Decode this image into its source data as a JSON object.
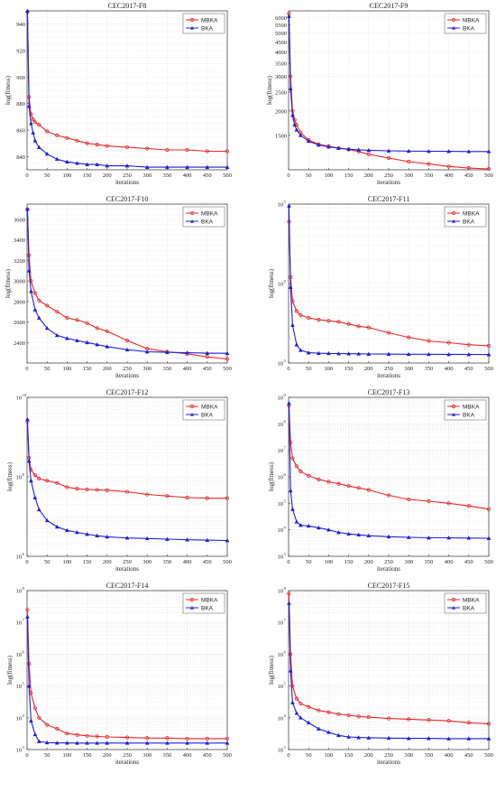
{
  "figure": {
    "colors": {
      "MBKA": "#e8272a",
      "BKA": "#1f1fd6",
      "grid": "#d9d9d9",
      "axis": "#333333"
    }
  },
  "chart_data": [
    {
      "type": "line",
      "title": "CEC2017-F8",
      "xlabel": "iterations",
      "ylabel": "log(fitness)",
      "yscale": "linear",
      "xlim": [
        0,
        500
      ],
      "ylim": [
        830,
        950
      ],
      "xticks": [
        0,
        50,
        100,
        150,
        200,
        250,
        300,
        350,
        400,
        450,
        500
      ],
      "yticks": [
        840,
        860,
        880,
        900,
        920,
        940
      ],
      "legend": "top-right",
      "grid": true,
      "series": [
        {
          "name": "MBKA",
          "color": "#e8272a",
          "marker": "circle",
          "x": [
            1,
            5,
            10,
            15,
            20,
            30,
            50,
            75,
            100,
            125,
            150,
            175,
            200,
            250,
            300,
            350,
            400,
            450,
            500
          ],
          "y": [
            949,
            885,
            872,
            868,
            866,
            864,
            859,
            856,
            854,
            852,
            850,
            849,
            848,
            847,
            846,
            845,
            845,
            844,
            844
          ]
        },
        {
          "name": "BKA",
          "color": "#1f1fd6",
          "marker": "triangle",
          "x": [
            1,
            5,
            10,
            15,
            20,
            30,
            50,
            75,
            100,
            125,
            150,
            175,
            200,
            250,
            300,
            350,
            400,
            450,
            500
          ],
          "y": [
            950,
            878,
            865,
            858,
            852,
            847,
            842,
            838,
            836,
            835,
            834,
            834,
            833,
            833,
            832,
            832,
            832,
            832,
            832
          ]
        }
      ]
    },
    {
      "type": "line",
      "title": "CEC2017-F9",
      "xlabel": "iterations",
      "ylabel": "log(fitness)",
      "yscale": "log",
      "xlim": [
        0,
        500
      ],
      "ylim": [
        1000,
        6500
      ],
      "xticks": [
        0,
        50,
        100,
        150,
        200,
        250,
        300,
        350,
        400,
        450,
        500
      ],
      "yticks": [
        1500,
        2000,
        2500,
        3000,
        3500,
        4000,
        4500,
        5000,
        5500,
        6000
      ],
      "legend": "top-right",
      "grid": true,
      "series": [
        {
          "name": "MBKA",
          "color": "#e8272a",
          "marker": "circle",
          "x": [
            1,
            5,
            10,
            15,
            20,
            30,
            50,
            75,
            100,
            125,
            150,
            175,
            200,
            250,
            300,
            350,
            400,
            450,
            500
          ],
          "y": [
            6300,
            3000,
            2000,
            1800,
            1700,
            1550,
            1420,
            1350,
            1320,
            1290,
            1270,
            1240,
            1200,
            1150,
            1100,
            1070,
            1040,
            1020,
            1010
          ]
        },
        {
          "name": "BKA",
          "color": "#1f1fd6",
          "marker": "triangle",
          "x": [
            1,
            5,
            10,
            15,
            20,
            30,
            50,
            75,
            100,
            125,
            150,
            175,
            200,
            250,
            300,
            350,
            400,
            450,
            500
          ],
          "y": [
            6100,
            2600,
            1900,
            1700,
            1600,
            1500,
            1400,
            1340,
            1310,
            1290,
            1275,
            1265,
            1258,
            1250,
            1246,
            1244,
            1242,
            1240,
            1240
          ]
        }
      ]
    },
    {
      "type": "line",
      "title": "CEC2017-F10",
      "xlabel": "iterations",
      "ylabel": "log(fitness)",
      "yscale": "linear",
      "xlim": [
        0,
        500
      ],
      "ylim": [
        2200,
        3750
      ],
      "xticks": [
        0,
        50,
        100,
        150,
        200,
        250,
        300,
        350,
        400,
        450,
        500
      ],
      "yticks": [
        2400,
        2600,
        2800,
        3000,
        3200,
        3400,
        3600
      ],
      "legend": "top-right",
      "grid": true,
      "series": [
        {
          "name": "MBKA",
          "color": "#e8272a",
          "marker": "circle",
          "x": [
            1,
            5,
            10,
            20,
            30,
            50,
            75,
            100,
            125,
            150,
            175,
            200,
            250,
            300,
            350,
            400,
            450,
            500
          ],
          "y": [
            3700,
            3250,
            3000,
            2880,
            2810,
            2760,
            2700,
            2640,
            2620,
            2590,
            2540,
            2510,
            2420,
            2340,
            2310,
            2290,
            2260,
            2240
          ]
        },
        {
          "name": "BKA",
          "color": "#1f1fd6",
          "marker": "triangle",
          "x": [
            1,
            5,
            10,
            20,
            30,
            50,
            75,
            100,
            125,
            150,
            175,
            200,
            250,
            300,
            350,
            400,
            450,
            500
          ],
          "y": [
            3700,
            3100,
            2900,
            2720,
            2640,
            2540,
            2470,
            2440,
            2420,
            2400,
            2380,
            2360,
            2330,
            2310,
            2305,
            2300,
            2296,
            2295
          ]
        }
      ]
    },
    {
      "type": "line",
      "title": "CEC2017-F11",
      "xlabel": "iterations",
      "ylabel": "log(fitness)",
      "yscale": "log",
      "xlim": [
        0,
        500
      ],
      "ylim": [
        1000,
        100000
      ],
      "xticks": [
        0,
        50,
        100,
        150,
        200,
        250,
        300,
        350,
        400,
        450,
        500
      ],
      "yticks": [
        1000,
        10000,
        100000
      ],
      "ytick_labels": [
        "10",
        "10",
        "10"
      ],
      "ytick_exps": [
        "3",
        "4",
        "5"
      ],
      "legend": "top-right",
      "grid": true,
      "series": [
        {
          "name": "MBKA",
          "color": "#e8272a",
          "marker": "circle",
          "x": [
            1,
            5,
            10,
            20,
            30,
            50,
            75,
            100,
            125,
            150,
            175,
            200,
            250,
            300,
            350,
            400,
            450,
            500
          ],
          "y": [
            60000,
            12000,
            6000,
            4500,
            4000,
            3700,
            3500,
            3400,
            3300,
            3100,
            2900,
            2800,
            2400,
            2100,
            1900,
            1800,
            1700,
            1650
          ]
        },
        {
          "name": "BKA",
          "color": "#1f1fd6",
          "marker": "triangle",
          "x": [
            1,
            5,
            10,
            20,
            30,
            50,
            75,
            100,
            125,
            150,
            175,
            200,
            250,
            300,
            350,
            400,
            450,
            500
          ],
          "y": [
            95000,
            9000,
            3000,
            1700,
            1450,
            1350,
            1330,
            1320,
            1315,
            1310,
            1305,
            1300,
            1295,
            1290,
            1288,
            1285,
            1283,
            1280
          ]
        }
      ]
    },
    {
      "type": "line",
      "title": "CEC2017-F12",
      "xlabel": "iterations",
      "ylabel": "log(fitness)",
      "yscale": "log",
      "xlim": [
        0,
        500
      ],
      "ylim": [
        1000000,
        10000000000
      ],
      "xticks": [
        0,
        50,
        100,
        150,
        200,
        250,
        300,
        350,
        400,
        450,
        500
      ],
      "yticks": [
        1000000,
        100000000,
        10000000000
      ],
      "ytick_labels": [
        "10",
        "10",
        "10"
      ],
      "ytick_exps": [
        "6",
        "8",
        "10"
      ],
      "legend": "top-right",
      "grid": true,
      "series": [
        {
          "name": "MBKA",
          "color": "#e8272a",
          "marker": "circle",
          "x": [
            1,
            5,
            10,
            20,
            30,
            50,
            75,
            100,
            125,
            150,
            175,
            200,
            250,
            300,
            350,
            400,
            450,
            500
          ],
          "y": [
            2500000000,
            300000000,
            150000000,
            110000000,
            90000000,
            80000000,
            70000000,
            55000000,
            50000000,
            48000000,
            47000000,
            46000000,
            42000000,
            36000000,
            33000000,
            30000000,
            29000000,
            29000000
          ]
        },
        {
          "name": "BKA",
          "color": "#1f1fd6",
          "marker": "triangle",
          "x": [
            1,
            5,
            10,
            20,
            30,
            50,
            75,
            100,
            125,
            150,
            175,
            200,
            250,
            300,
            350,
            400,
            450,
            500
          ],
          "y": [
            2800000000,
            250000000,
            80000000,
            30000000,
            15000000,
            8000000,
            5500000,
            4500000,
            4000000,
            3600000,
            3300000,
            3100000,
            2900000,
            2800000,
            2700000,
            2600000,
            2550000,
            2500000
          ]
        }
      ]
    },
    {
      "type": "line",
      "title": "CEC2017-F13",
      "xlabel": "iterations",
      "ylabel": "log(fitness)",
      "yscale": "log",
      "xlim": [
        0,
        500
      ],
      "ylim": [
        1000,
        1000000000
      ],
      "xticks": [
        0,
        50,
        100,
        150,
        200,
        250,
        300,
        350,
        400,
        450,
        500
      ],
      "yticks": [
        1000,
        10000,
        100000,
        1000000,
        10000000,
        100000000,
        1000000000
      ],
      "ytick_labels": [
        "10",
        "10",
        "10",
        "10",
        "10",
        "10",
        "10"
      ],
      "ytick_exps": [
        "3",
        "4",
        "5",
        "6",
        "7",
        "8",
        "9"
      ],
      "legend": "top-right",
      "grid": true,
      "series": [
        {
          "name": "MBKA",
          "color": "#e8272a",
          "marker": "circle",
          "x": [
            1,
            5,
            10,
            20,
            30,
            50,
            75,
            100,
            125,
            150,
            175,
            200,
            250,
            300,
            350,
            400,
            450,
            500
          ],
          "y": [
            500000000,
            20000000,
            5000000,
            2500000,
            1600000,
            1100000,
            800000,
            650000,
            550000,
            450000,
            380000,
            320000,
            200000,
            140000,
            120000,
            100000,
            80000,
            60000
          ]
        },
        {
          "name": "BKA",
          "color": "#1f1fd6",
          "marker": "triangle",
          "x": [
            1,
            5,
            10,
            20,
            30,
            50,
            75,
            100,
            125,
            150,
            175,
            200,
            250,
            300,
            350,
            400,
            450,
            500
          ],
          "y": [
            600000000,
            300000,
            60000,
            20000,
            15000,
            14000,
            12000,
            10000,
            8000,
            7000,
            6500,
            6000,
            5500,
            5200,
            5000,
            5000,
            4900,
            4800
          ]
        }
      ]
    },
    {
      "type": "line",
      "title": "CEC2017-F14",
      "xlabel": "iterations",
      "ylabel": "log(fitness)",
      "yscale": "log",
      "xlim": [
        0,
        500
      ],
      "ylim": [
        1000,
        100000000
      ],
      "xticks": [
        0,
        50,
        100,
        150,
        200,
        250,
        300,
        350,
        400,
        450,
        500
      ],
      "yticks": [
        1000,
        10000,
        100000,
        1000000,
        10000000,
        100000000
      ],
      "ytick_labels": [
        "10",
        "10",
        "10",
        "10",
        "10",
        "10"
      ],
      "ytick_exps": [
        "3",
        "4",
        "5",
        "6",
        "7",
        "8"
      ],
      "legend": "top-right",
      "grid": true,
      "series": [
        {
          "name": "MBKA",
          "color": "#e8272a",
          "marker": "circle",
          "x": [
            1,
            5,
            10,
            20,
            30,
            50,
            75,
            100,
            125,
            150,
            175,
            200,
            250,
            300,
            350,
            400,
            450,
            500
          ],
          "y": [
            25000000,
            500000,
            60000,
            20000,
            10000,
            6000,
            4500,
            3200,
            2900,
            2700,
            2600,
            2500,
            2400,
            2300,
            2300,
            2200,
            2200,
            2200
          ]
        },
        {
          "name": "BKA",
          "color": "#1f1fd6",
          "marker": "triangle",
          "x": [
            1,
            5,
            10,
            20,
            30,
            50,
            75,
            100,
            125,
            150,
            175,
            200,
            250,
            300,
            350,
            400,
            450,
            500
          ],
          "y": [
            15000000,
            100000,
            8000,
            3000,
            1800,
            1650,
            1620,
            1610,
            1600,
            1600,
            1600,
            1600,
            1600,
            1600,
            1600,
            1600,
            1600,
            1600
          ]
        }
      ]
    },
    {
      "type": "line",
      "title": "CEC2017-F15",
      "xlabel": "iterations",
      "ylabel": "log(fitness)",
      "yscale": "log",
      "xlim": [
        0,
        500
      ],
      "ylim": [
        1000,
        100000000
      ],
      "xticks": [
        0,
        50,
        100,
        150,
        200,
        250,
        300,
        350,
        400,
        450,
        500
      ],
      "yticks": [
        1000,
        10000,
        100000,
        1000000,
        10000000,
        100000000
      ],
      "ytick_labels": [
        "10",
        "10",
        "10",
        "10",
        "10",
        "10"
      ],
      "ytick_exps": [
        "3",
        "4",
        "5",
        "6",
        "7",
        "8"
      ],
      "legend": "top-right",
      "grid": true,
      "series": [
        {
          "name": "MBKA",
          "color": "#e8272a",
          "marker": "circle",
          "x": [
            1,
            5,
            10,
            20,
            30,
            50,
            75,
            100,
            125,
            150,
            175,
            200,
            250,
            300,
            350,
            400,
            450,
            500
          ],
          "y": [
            80000000,
            1000000,
            100000,
            40000,
            28000,
            22000,
            17000,
            15000,
            13000,
            12000,
            11000,
            10500,
            9500,
            9000,
            8500,
            8000,
            7000,
            6500
          ]
        },
        {
          "name": "BKA",
          "color": "#1f1fd6",
          "marker": "triangle",
          "x": [
            1,
            5,
            10,
            20,
            30,
            50,
            75,
            100,
            125,
            150,
            175,
            200,
            250,
            300,
            350,
            400,
            450,
            500
          ],
          "y": [
            40000000,
            300000,
            30000,
            14000,
            10000,
            7000,
            4500,
            3500,
            2800,
            2500,
            2400,
            2350,
            2300,
            2250,
            2250,
            2200,
            2200,
            2200
          ]
        }
      ]
    }
  ]
}
